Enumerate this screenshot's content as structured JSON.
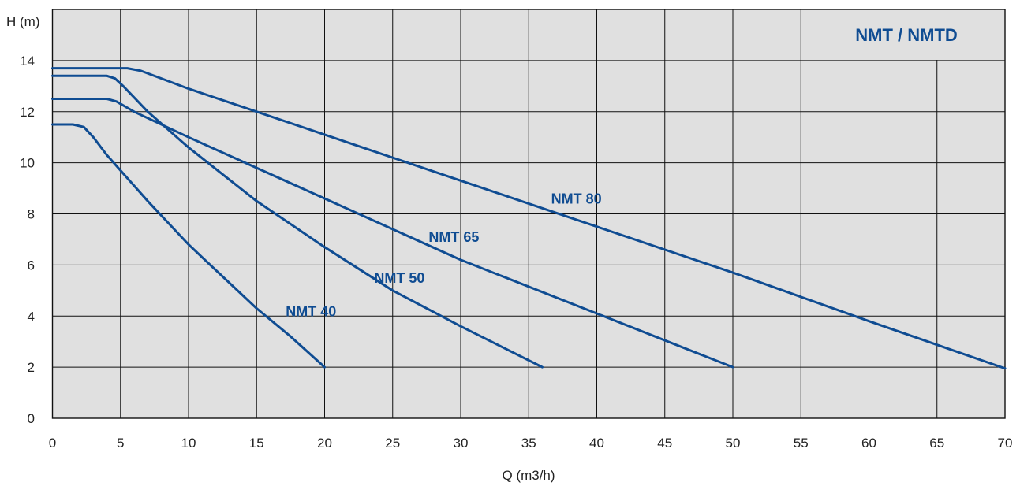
{
  "chart_data": {
    "type": "line",
    "title": "NMT / NMTD",
    "xlabel": "Q (m3/h)",
    "ylabel": "H (m)",
    "xlim": [
      0,
      70
    ],
    "ylim": [
      0,
      16
    ],
    "x_ticks": [
      0,
      5,
      10,
      15,
      20,
      25,
      30,
      35,
      40,
      45,
      50,
      55,
      60,
      65,
      70
    ],
    "y_ticks": [
      0,
      2,
      4,
      6,
      8,
      10,
      12,
      14
    ],
    "grid": true,
    "series": [
      {
        "name": "NMT 40",
        "x": [
          0,
          1.5,
          2.3,
          3.0,
          4.0,
          5.0,
          7.0,
          10.0,
          12.0,
          15.0,
          17.5,
          20.0
        ],
        "y": [
          11.5,
          11.5,
          11.4,
          11.0,
          10.3,
          9.7,
          8.5,
          6.8,
          5.8,
          4.3,
          3.2,
          2.0
        ]
      },
      {
        "name": "NMT 50",
        "x": [
          0,
          4.0,
          4.6,
          5.2,
          7.0,
          10.0,
          15.0,
          20.0,
          25.0,
          30.0,
          33.0,
          36.0
        ],
        "y": [
          13.4,
          13.4,
          13.3,
          13.0,
          12.0,
          10.6,
          8.5,
          6.7,
          5.0,
          3.6,
          2.8,
          2.0
        ]
      },
      {
        "name": "NMT 65",
        "x": [
          0,
          4.0,
          4.7,
          6.0,
          10.0,
          20.0,
          30.0,
          40.0,
          50.0
        ],
        "y": [
          12.5,
          12.5,
          12.4,
          12.0,
          11.0,
          8.6,
          6.2,
          4.1,
          2.0
        ]
      },
      {
        "name": "NMT 80",
        "x": [
          0,
          5.5,
          6.5,
          8.0,
          10.0,
          20.0,
          30.0,
          40.0,
          50.0,
          60.0,
          70.0
        ],
        "y": [
          13.7,
          13.7,
          13.6,
          13.3,
          12.9,
          11.1,
          9.3,
          7.5,
          5.7,
          3.8,
          1.95
        ]
      }
    ],
    "colors": {
      "series": "#0f4c92",
      "plot_background": "#e0e0e0",
      "grid": "#111111"
    }
  }
}
